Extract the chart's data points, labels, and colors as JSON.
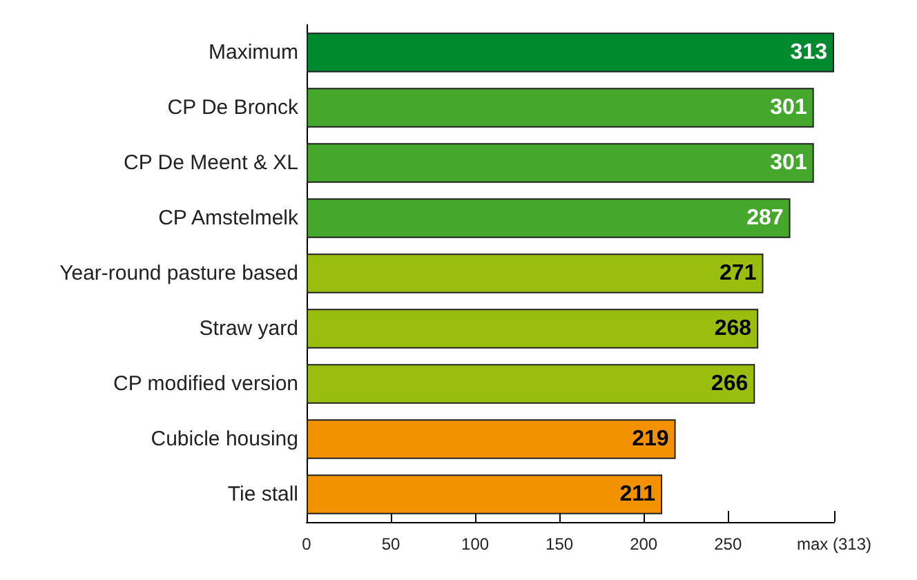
{
  "chart_data": {
    "type": "bar",
    "orientation": "horizontal",
    "categories": [
      "Maximum",
      "CP De Bronck",
      "CP De Meent & XL",
      "CP Amstelmelk",
      "Year-round pasture based",
      "Straw yard",
      "CP modified version",
      "Cubicle housing",
      "Tie stall"
    ],
    "values": [
      313,
      301,
      301,
      287,
      271,
      268,
      266,
      219,
      211
    ],
    "colors": [
      "#008a2f",
      "#45a72c",
      "#45a72c",
      "#45a72c",
      "#9abe0e",
      "#9abe0e",
      "#9abe0e",
      "#f39200",
      "#f39200"
    ],
    "xlim": [
      0,
      313
    ],
    "xticks": [
      0,
      50,
      100,
      150,
      200,
      250,
      {
        "value": 313,
        "label": "max (313)"
      }
    ],
    "data_labels": true
  }
}
